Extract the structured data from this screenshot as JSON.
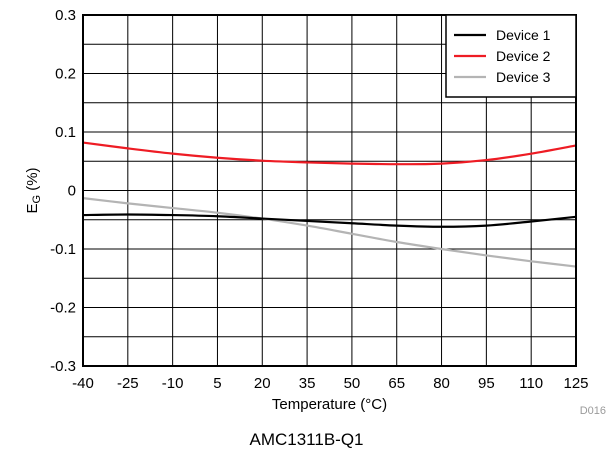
{
  "chart_data": {
    "type": "line",
    "title": "",
    "xlabel": "Temperature (°C)",
    "ylabel_main": "E",
    "ylabel_sub": "G",
    "ylabel_unit": " (%)",
    "xlim": [
      -40,
      125
    ],
    "ylim": [
      -0.3,
      0.3
    ],
    "x_ticks": [
      -40,
      -25,
      -10,
      5,
      20,
      35,
      50,
      65,
      80,
      95,
      110,
      125
    ],
    "y_ticks": [
      0.3,
      0.2,
      0.1,
      0,
      -0.1,
      -0.2,
      -0.3
    ],
    "y_tick_labels": [
      "0.3",
      "0.2",
      "0.1",
      "0",
      "-0.1",
      "-0.2",
      "-0.3"
    ],
    "grid": true,
    "legend_position": "top-right",
    "x": [
      -40,
      -25,
      -10,
      5,
      20,
      35,
      50,
      65,
      80,
      95,
      110,
      125
    ],
    "series": [
      {
        "name": "Device 1",
        "color": "#000000",
        "values": [
          -0.042,
          -0.041,
          -0.042,
          -0.044,
          -0.048,
          -0.052,
          -0.056,
          -0.06,
          -0.062,
          -0.06,
          -0.053,
          -0.045
        ]
      },
      {
        "name": "Device 2",
        "color": "#ee1c24",
        "values": [
          0.082,
          0.072,
          0.063,
          0.056,
          0.051,
          0.048,
          0.046,
          0.045,
          0.046,
          0.052,
          0.063,
          0.077
        ]
      },
      {
        "name": "Device 3",
        "color": "#b4b4b4",
        "values": [
          -0.013,
          -0.022,
          -0.03,
          -0.038,
          -0.048,
          -0.06,
          -0.074,
          -0.088,
          -0.1,
          -0.111,
          -0.121,
          -0.13
        ]
      }
    ],
    "figure_ref": "D016",
    "caption": "AMC1311B-Q1"
  }
}
